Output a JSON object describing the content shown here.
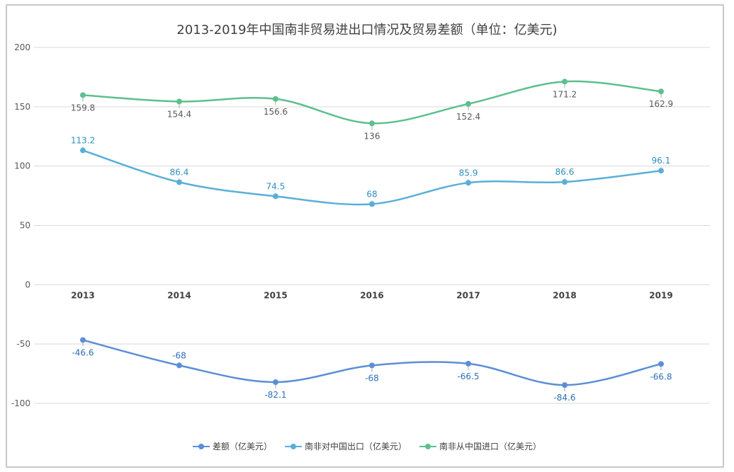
{
  "chart_data": {
    "type": "line",
    "title": "2013-2019年中国南非贸易进出口情况及贸易差额（单位：亿美元)",
    "categories": [
      "2013",
      "2014",
      "2015",
      "2016",
      "2017",
      "2018",
      "2019"
    ],
    "ylim": [
      -100,
      200
    ],
    "yticks": [
      "200",
      "150",
      "100",
      "50",
      "0",
      "-50",
      "-100"
    ],
    "grid": true,
    "legend_position": "bottom",
    "series": [
      {
        "name": "差额（亿美元）",
        "color": "#5b8fd6",
        "values": [
          -46.6,
          -68,
          -82.1,
          -68,
          -66.5,
          -84.6,
          -66.8
        ],
        "labels": [
          "-46.6",
          "-68",
          "-82.1",
          "-68",
          "-66.5",
          "-84.6",
          "-66.8"
        ]
      },
      {
        "name": "南非对中国出口（亿美元）",
        "color": "#5aafd9",
        "values": [
          113.2,
          86.4,
          74.5,
          68,
          85.9,
          86.6,
          96.1
        ],
        "labels": [
          "113.2",
          "86.4",
          "74.5",
          "68",
          "85.9",
          "86.6",
          "96.1"
        ]
      },
      {
        "name": "南非从中国进口（亿美元）",
        "color": "#5cc08e",
        "values": [
          159.8,
          154.4,
          156.6,
          136,
          152.4,
          171.2,
          162.9
        ],
        "labels": [
          "159.8",
          "154.4",
          "156.6",
          "136",
          "152.4",
          "171.2",
          "162.9"
        ]
      }
    ]
  }
}
